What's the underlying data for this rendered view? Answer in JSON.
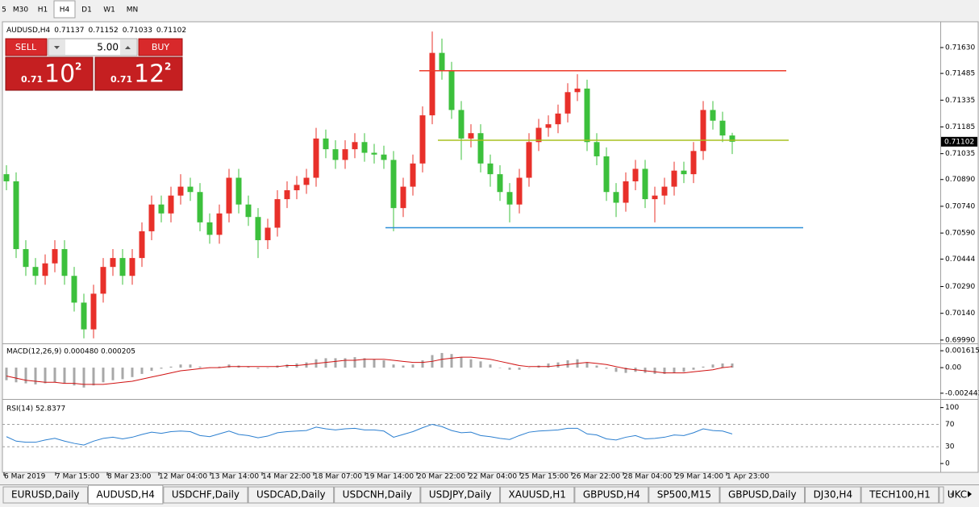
{
  "toolbar": {
    "timeframes": [
      "5",
      "M30",
      "H1",
      "H4",
      "D1",
      "W1",
      "MN"
    ]
  },
  "trade_panel": {
    "sell": "SELL",
    "lots": "5.00",
    "buy": "BUY",
    "sell_price": {
      "prefix": "0.71",
      "big": "10",
      "sup": "2"
    },
    "buy_price": {
      "prefix": "0.71",
      "big": "12",
      "sup": "2"
    }
  },
  "chart_data": [
    {
      "type": "candlestick",
      "symbol": "AUDUSD,H4",
      "up_color": "#e8302a",
      "down_color": "#3cc03c",
      "ylim": [
        0.69976,
        0.71761
      ],
      "yticks": [
        {
          "value": 0.7163,
          "label": "0.71630"
        },
        {
          "value": 0.71485,
          "label": "0.71485"
        },
        {
          "value": 0.71335,
          "label": "0.71335"
        },
        {
          "value": 0.71185,
          "label": "0.71185"
        },
        {
          "value": 0.71035,
          "label": "0.71035"
        },
        {
          "value": 0.7089,
          "label": "0.70890"
        },
        {
          "value": 0.7074,
          "label": "0.70740"
        },
        {
          "value": 0.7059,
          "label": "0.70590"
        },
        {
          "value": 0.70444,
          "label": "0.70444"
        },
        {
          "value": 0.7029,
          "label": "0.70290"
        },
        {
          "value": 0.7014,
          "label": "0.70140"
        },
        {
          "value": 0.6999,
          "label": "0.69990"
        }
      ],
      "levels": [
        {
          "value": 0.715,
          "color": "#ee3b2b"
        },
        {
          "value": 0.7111,
          "color": "#a8c020"
        },
        {
          "value": 0.7062,
          "color": "#2e8fd8"
        }
      ],
      "x_labels": [
        "6 Mar 2019",
        "7 Mar 15:00",
        "8 Mar 23:00",
        "12 Mar 04:00",
        "13 Mar 14:00",
        "14 Mar 22:00",
        "18 Mar 07:00",
        "19 Mar 14:00",
        "20 Mar 22:00",
        "22 Mar 04:00",
        "25 Mar 15:00",
        "26 Mar 22:00",
        "28 Mar 04:00",
        "29 Mar 14:00",
        "1 Apr 23:00"
      ],
      "ohlc": [
        [
          0.7092,
          0.7097,
          0.7083,
          0.7088
        ],
        [
          0.7088,
          0.7093,
          0.7045,
          0.705
        ],
        [
          0.705,
          0.7055,
          0.7035,
          0.704
        ],
        [
          0.704,
          0.7045,
          0.703,
          0.7035
        ],
        [
          0.7035,
          0.7047,
          0.703,
          0.7042
        ],
        [
          0.7042,
          0.7055,
          0.7037,
          0.705
        ],
        [
          0.705,
          0.7055,
          0.703,
          0.7035
        ],
        [
          0.7035,
          0.704,
          0.7015,
          0.702
        ],
        [
          0.702,
          0.7025,
          0.7,
          0.7005
        ],
        [
          0.7005,
          0.703,
          0.7,
          0.7025
        ],
        [
          0.7025,
          0.7045,
          0.702,
          0.704
        ],
        [
          0.704,
          0.705,
          0.7035,
          0.7045
        ],
        [
          0.7045,
          0.705,
          0.703,
          0.7035
        ],
        [
          0.7035,
          0.705,
          0.703,
          0.7045
        ],
        [
          0.7045,
          0.7065,
          0.704,
          0.706
        ],
        [
          0.706,
          0.708,
          0.7055,
          0.7075
        ],
        [
          0.7075,
          0.708,
          0.7065,
          0.707
        ],
        [
          0.707,
          0.7085,
          0.7065,
          0.708
        ],
        [
          0.708,
          0.7092,
          0.7075,
          0.7085
        ],
        [
          0.7085,
          0.709,
          0.7077,
          0.7082
        ],
        [
          0.7082,
          0.7087,
          0.706,
          0.7065
        ],
        [
          0.7065,
          0.707,
          0.7053,
          0.7058
        ],
        [
          0.7058,
          0.7075,
          0.7053,
          0.707
        ],
        [
          0.707,
          0.7095,
          0.7065,
          0.709
        ],
        [
          0.709,
          0.7095,
          0.707,
          0.7075
        ],
        [
          0.7075,
          0.708,
          0.7063,
          0.7068
        ],
        [
          0.7068,
          0.7073,
          0.7045,
          0.7055
        ],
        [
          0.7055,
          0.7067,
          0.705,
          0.7062
        ],
        [
          0.7062,
          0.7083,
          0.7057,
          0.7078
        ],
        [
          0.7078,
          0.7088,
          0.7073,
          0.7083
        ],
        [
          0.7083,
          0.7091,
          0.7078,
          0.7086
        ],
        [
          0.7086,
          0.7095,
          0.7081,
          0.709
        ],
        [
          0.709,
          0.7118,
          0.7085,
          0.7112
        ],
        [
          0.7112,
          0.7117,
          0.7101,
          0.7106
        ],
        [
          0.7106,
          0.7111,
          0.7095,
          0.71
        ],
        [
          0.71,
          0.7111,
          0.7095,
          0.7106
        ],
        [
          0.7106,
          0.7115,
          0.7101,
          0.711
        ],
        [
          0.711,
          0.7115,
          0.7099,
          0.7104
        ],
        [
          0.7104,
          0.7109,
          0.7098,
          0.7103
        ],
        [
          0.7103,
          0.7108,
          0.7095,
          0.71
        ],
        [
          0.71,
          0.7105,
          0.706,
          0.7073
        ],
        [
          0.7073,
          0.709,
          0.7068,
          0.7085
        ],
        [
          0.7085,
          0.7103,
          0.708,
          0.7098
        ],
        [
          0.7098,
          0.713,
          0.7093,
          0.7125
        ],
        [
          0.7125,
          0.7172,
          0.712,
          0.716
        ],
        [
          0.716,
          0.7168,
          0.7145,
          0.715
        ],
        [
          0.715,
          0.7155,
          0.7123,
          0.7128
        ],
        [
          0.7128,
          0.7133,
          0.71,
          0.7112
        ],
        [
          0.7112,
          0.712,
          0.7107,
          0.7115
        ],
        [
          0.7115,
          0.712,
          0.7093,
          0.7098
        ],
        [
          0.7098,
          0.7103,
          0.7085,
          0.7092
        ],
        [
          0.7092,
          0.7097,
          0.7077,
          0.7082
        ],
        [
          0.7082,
          0.7087,
          0.7065,
          0.7075
        ],
        [
          0.7075,
          0.7095,
          0.707,
          0.709
        ],
        [
          0.709,
          0.7115,
          0.7085,
          0.711
        ],
        [
          0.711,
          0.7123,
          0.7105,
          0.7118
        ],
        [
          0.7118,
          0.7125,
          0.7113,
          0.712
        ],
        [
          0.712,
          0.7131,
          0.7115,
          0.7126
        ],
        [
          0.7126,
          0.7143,
          0.7121,
          0.7138
        ],
        [
          0.7138,
          0.7148,
          0.7133,
          0.714
        ],
        [
          0.714,
          0.7145,
          0.7105,
          0.711
        ],
        [
          0.711,
          0.7115,
          0.7097,
          0.7102
        ],
        [
          0.7102,
          0.7107,
          0.7077,
          0.7082
        ],
        [
          0.7082,
          0.7087,
          0.7068,
          0.7076
        ],
        [
          0.7076,
          0.7093,
          0.7071,
          0.7088
        ],
        [
          0.7088,
          0.71,
          0.7083,
          0.7095
        ],
        [
          0.7095,
          0.71,
          0.7073,
          0.7078
        ],
        [
          0.7078,
          0.7085,
          0.7065,
          0.708
        ],
        [
          0.708,
          0.709,
          0.7075,
          0.7085
        ],
        [
          0.7085,
          0.7099,
          0.708,
          0.7094
        ],
        [
          0.7094,
          0.7099,
          0.7087,
          0.7092
        ],
        [
          0.7092,
          0.711,
          0.7087,
          0.7105
        ],
        [
          0.7105,
          0.7133,
          0.71,
          0.7128
        ],
        [
          0.7128,
          0.7133,
          0.7117,
          0.7122
        ],
        [
          0.7122,
          0.7127,
          0.711,
          0.71137
        ],
        [
          0.71137,
          0.71152,
          0.71033,
          0.71102
        ]
      ]
    },
    {
      "type": "macd",
      "title": "MACD(12,26,9) 0.000480 0.000205",
      "histogram_color": "#a8a8a8",
      "signal_color": "#d01010",
      "ylim": [
        -0.00284,
        0.00201
      ],
      "yticks": [
        0.001615,
        {
          "value": 0,
          "label": "0.00"
        },
        -0.002443
      ],
      "histogram": [
        -0.0012,
        -0.0014,
        -0.0015,
        -0.0016,
        -0.0015,
        -0.0014,
        -0.0015,
        -0.0017,
        -0.0019,
        -0.0017,
        -0.0014,
        -0.0012,
        -0.0011,
        -0.0009,
        -0.0006,
        -0.0003,
        -0.0001,
        0.0001,
        0.0003,
        0.0003,
        0.0001,
        0,
        0.0001,
        0.0003,
        0.0002,
        0.0001,
        -0.0001,
        0,
        0.0002,
        0.0003,
        0.0004,
        0.0005,
        0.0008,
        0.0009,
        0.0009,
        0.0009,
        0.001,
        0.0009,
        0.0008,
        0.0007,
        0.0003,
        0.0002,
        0.0003,
        0.0007,
        0.0012,
        0.0014,
        0.0013,
        0.001,
        0.0008,
        0.0006,
        0.0003,
        0,
        -0.0002,
        -0.0002,
        0,
        0.0002,
        0.0004,
        0.0005,
        0.0007,
        0.0008,
        0.0005,
        0.0002,
        -0.0001,
        -0.0004,
        -0.0005,
        -0.0004,
        -0.0005,
        -0.0006,
        -0.0006,
        -0.0005,
        -0.0004,
        -0.0002,
        0.0001,
        0.0003,
        0.0004,
        0.0004
      ],
      "signal": [
        -0.0008,
        -0.001,
        -0.0012,
        -0.0013,
        -0.0014,
        -0.0014,
        -0.0015,
        -0.0015,
        -0.0016,
        -0.0016,
        -0.0016,
        -0.0015,
        -0.0014,
        -0.0013,
        -0.0011,
        -0.0009,
        -0.0007,
        -0.0005,
        -0.0003,
        -0.0002,
        -0.0001,
        0,
        0,
        0.0001,
        0.0001,
        0.0001,
        0.0001,
        0.0001,
        0.0001,
        0.0002,
        0.0002,
        0.0003,
        0.0004,
        0.0005,
        0.0006,
        0.0007,
        0.0007,
        0.0008,
        0.0008,
        0.0008,
        0.0007,
        0.0006,
        0.0005,
        0.0005,
        0.0006,
        0.0008,
        0.0009,
        0.001,
        0.001,
        0.0009,
        0.0008,
        0.0006,
        0.0004,
        0.0002,
        0.0001,
        0.0001,
        0.0001,
        0.0002,
        0.0003,
        0.0004,
        0.0005,
        0.0004,
        0.0003,
        0.0001,
        -0.0001,
        -0.0002,
        -0.0003,
        -0.0004,
        -0.0005,
        -0.0005,
        -0.0005,
        -0.0004,
        -0.0003,
        -0.0002,
        0,
        0.0001
      ]
    },
    {
      "type": "line",
      "title": "RSI(14) 52.8377",
      "color": "#2b7fd0",
      "ylim": [
        -10,
        111
      ],
      "yticks": [
        100,
        70,
        30,
        0
      ],
      "values": [
        48,
        40,
        38,
        38,
        42,
        45,
        40,
        36,
        33,
        40,
        45,
        47,
        44,
        47,
        52,
        56,
        54,
        57,
        58,
        57,
        50,
        48,
        53,
        58,
        52,
        50,
        46,
        49,
        55,
        57,
        58,
        59,
        65,
        62,
        60,
        62,
        63,
        60,
        60,
        58,
        47,
        52,
        57,
        64,
        70,
        66,
        59,
        55,
        56,
        50,
        48,
        45,
        43,
        50,
        56,
        58,
        59,
        60,
        63,
        63,
        53,
        51,
        44,
        42,
        47,
        50,
        44,
        45,
        47,
        51,
        50,
        55,
        62,
        59,
        58,
        52.8377
      ]
    }
  ],
  "tabs": [
    "EURUSD,Daily",
    "AUDUSD,H4",
    "USDCHF,Daily",
    "USDCAD,Daily",
    "USDCNH,Daily",
    "USDJPY,Daily",
    "XAUUSD,H1",
    "GBPUSD,H4",
    "SP500,M15",
    "GBPUSD,Daily",
    "DJ30,H4",
    "TECH100,H1",
    "UKC"
  ]
}
